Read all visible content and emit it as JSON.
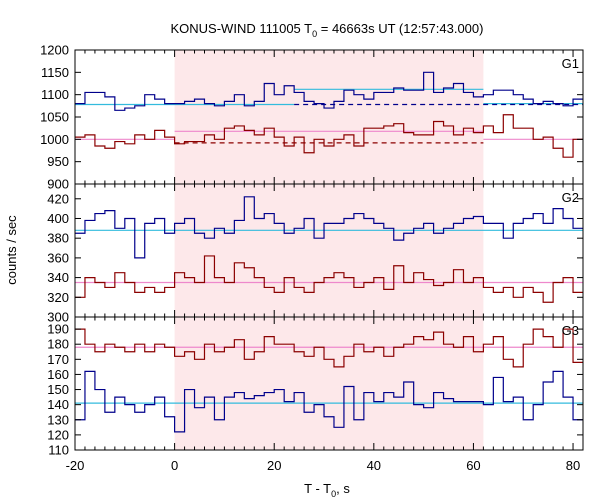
{
  "chart_data": {
    "type": "line",
    "title": {
      "prefix": "KONUS-WIND 111005 T",
      "sub": "0",
      "suffix": " = 46663s UT (12:57:43.000)"
    },
    "xlabel": {
      "prefix": "T - T",
      "sub": "0",
      "suffix": ", s"
    },
    "ylabel": "counts / sec",
    "xlim": [
      -20,
      82
    ],
    "xticks": [
      "-20",
      "0",
      "20",
      "40",
      "60",
      "80"
    ],
    "shaded_interval": [
      0,
      62
    ],
    "shade_color": "#fde8ea",
    "panels": [
      {
        "name": "G1",
        "ylim": [
          900,
          1200
        ],
        "yticks": [
          900,
          950,
          1000,
          1050,
          1100,
          1150,
          1200
        ],
        "series": [
          {
            "color": "#00008b",
            "type": "step",
            "x_start": -20,
            "bin": 2,
            "values": [
              1080,
              1105,
              1105,
              1095,
              1065,
              1070,
              1075,
              1100,
              1090,
              1080,
              1080,
              1085,
              1090,
              1080,
              1075,
              1085,
              1100,
              1075,
              1085,
              1125,
              1100,
              1120,
              1105,
              1085,
              1080,
              1070,
              1085,
              1110,
              1100,
              1090,
              1105,
              1105,
              1115,
              1110,
              1110,
              1150,
              1105,
              1115,
              1125,
              1105,
              1095,
              1100,
              1110,
              1110,
              1100,
              1090,
              1080,
              1085,
              1080,
              1075,
              1090
            ]
          },
          {
            "color": "#8b0000",
            "type": "step",
            "x_start": -20,
            "bin": 2,
            "values": [
              1005,
              1010,
              985,
              980,
              995,
              990,
              1010,
              1000,
              1020,
              1005,
              990,
              995,
              995,
              1010,
              1000,
              1025,
              1030,
              1020,
              1010,
              1025,
              1005,
              985,
              1005,
              970,
              1000,
              985,
              1000,
              1010,
              985,
              1025,
              1025,
              1030,
              1035,
              1015,
              1010,
              1010,
              1040,
              1030,
              1010,
              1025,
              1015,
              1030,
              1015,
              1055,
              1025,
              1025,
              1000,
              1005,
              980,
              960,
              1000
            ]
          }
        ],
        "bkg_lines": [
          {
            "color": "#33bbdd",
            "segments": [
              [
                -20,
                24,
                1078
              ],
              [
                24,
                62,
                1112
              ],
              [
                62,
                82,
                1080
              ]
            ]
          },
          {
            "color": "#ee88cc",
            "segments": [
              [
                -20,
                0,
                1000
              ],
              [
                0,
                62,
                1018
              ],
              [
                62,
                82,
                1000
              ]
            ]
          }
        ],
        "dashed_lines": [
          {
            "color": "#00008b",
            "x0": 24,
            "x1": 82,
            "y": 1078
          },
          {
            "color": "#8b0000",
            "x0": 0,
            "x1": 62,
            "y": 992
          }
        ]
      },
      {
        "name": "G2",
        "ylim": [
          300,
          435
        ],
        "yticks": [
          300,
          320,
          340,
          360,
          380,
          400,
          420
        ],
        "series": [
          {
            "color": "#00008b",
            "type": "step",
            "x_start": -20,
            "bin": 2,
            "values": [
              385,
              398,
              405,
              408,
              390,
              400,
              360,
              395,
              400,
              385,
              395,
              400,
              385,
              380,
              390,
              385,
              398,
              422,
              400,
              405,
              395,
              385,
              390,
              400,
              380,
              395,
              395,
              400,
              405,
              400,
              395,
              390,
              378,
              385,
              390,
              395,
              385,
              390,
              395,
              400,
              402,
              395,
              395,
              380,
              395,
              400,
              405,
              395,
              410,
              400,
              390
            ]
          },
          {
            "color": "#8b0000",
            "type": "step",
            "x_start": -20,
            "bin": 2,
            "values": [
              320,
              340,
              335,
              330,
              345,
              335,
              325,
              330,
              325,
              330,
              345,
              340,
              335,
              362,
              340,
              335,
              355,
              350,
              340,
              330,
              325,
              340,
              330,
              325,
              335,
              340,
              345,
              340,
              330,
              335,
              340,
              328,
              352,
              335,
              345,
              338,
              332,
              335,
              348,
              335,
              340,
              330,
              325,
              330,
              320,
              330,
              325,
              315,
              335,
              340,
              325
            ]
          }
        ],
        "bkg_lines": [
          {
            "color": "#33bbdd",
            "segments": [
              [
                -20,
                82,
                388
              ]
            ]
          },
          {
            "color": "#ee88cc",
            "segments": [
              [
                -20,
                82,
                335
              ]
            ]
          }
        ],
        "dashed_lines": []
      },
      {
        "name": "G3",
        "ylim": [
          110,
          198
        ],
        "yticks": [
          110,
          120,
          130,
          140,
          150,
          160,
          170,
          180,
          190
        ],
        "series": [
          {
            "color": "#8b0000",
            "type": "step",
            "x_start": -20,
            "bin": 2,
            "values": [
              190,
              180,
              175,
              180,
              178,
              175,
              180,
              175,
              180,
              178,
              172,
              175,
              170,
              180,
              175,
              178,
              183,
              170,
              175,
              185,
              180,
              180,
              175,
              172,
              178,
              170,
              165,
              172,
              180,
              175,
              178,
              172,
              178,
              180,
              185,
              183,
              188,
              180,
              178,
              185,
              175,
              180,
              185,
              170,
              165,
              180,
              190,
              185,
              178,
              190,
              168
            ]
          },
          {
            "color": "#00008b",
            "type": "step",
            "x_start": -20,
            "bin": 2,
            "values": [
              130,
              162,
              150,
              135,
              145,
              140,
              135,
              140,
              145,
              132,
              122,
              150,
              138,
              145,
              130,
              145,
              148,
              144,
              146,
              148,
              150,
              142,
              148,
              135,
              140,
              132,
              125,
              152,
              130,
              148,
              142,
              148,
              145,
              155,
              140,
              138,
              148,
              144,
              142,
              142,
              142,
              140,
              158,
              142,
              145,
              130,
              140,
              155,
              162,
              145,
              130
            ]
          }
        ],
        "bkg_lines": [
          {
            "color": "#ee88cc",
            "segments": [
              [
                -20,
                82,
                178
              ]
            ]
          },
          {
            "color": "#33bbdd",
            "segments": [
              [
                -20,
                82,
                141
              ]
            ]
          }
        ],
        "dashed_lines": []
      }
    ]
  }
}
